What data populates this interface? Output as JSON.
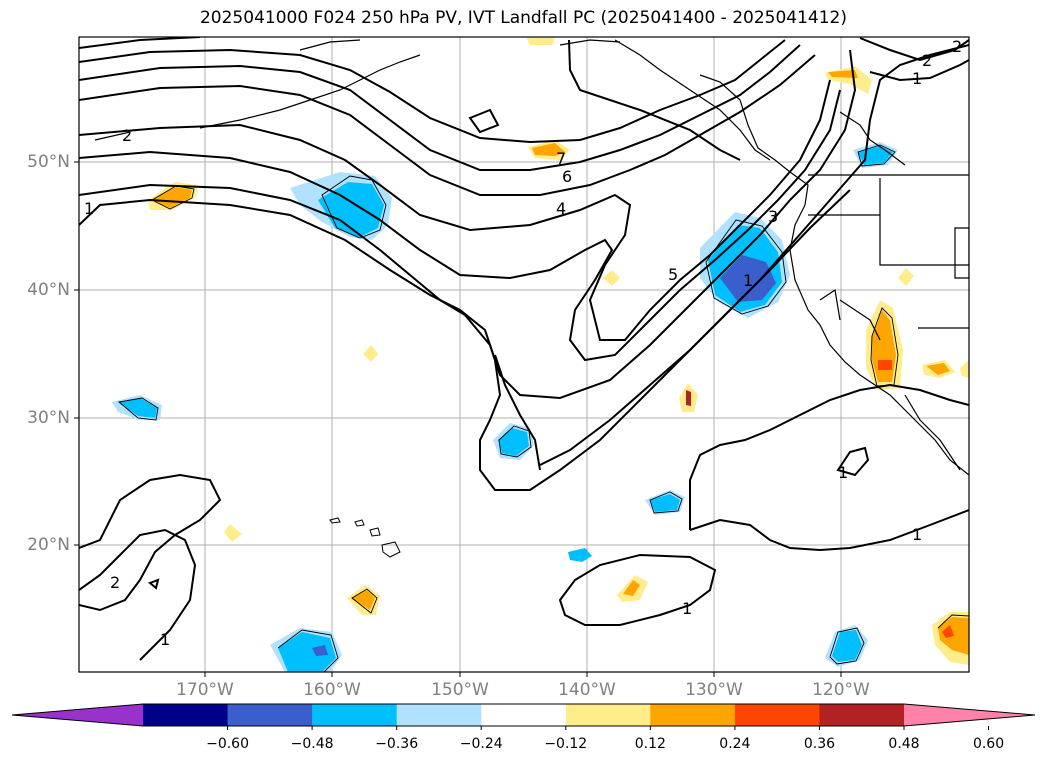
{
  "title": "2025041000 F024 250 hPa PV, IVT Landfall PC (2025041400 - 2025041412)",
  "lat_labels": [
    "50°N",
    "40°N",
    "30°N",
    "20°N"
  ],
  "lon_labels": [
    "170°W",
    "160°W",
    "150°W",
    "140°W",
    "130°W",
    "120°W"
  ],
  "contour_labels": [
    "1",
    "2",
    "6",
    "4",
    "7",
    "5",
    "3",
    "1",
    "2",
    "1",
    "1",
    "1",
    "2",
    "1",
    "2",
    "1"
  ],
  "colorbar": {
    "ticks": [
      "−0.60",
      "−0.48",
      "−0.36",
      "−0.24",
      "−0.12",
      "0.12",
      "0.24",
      "0.36",
      "0.48",
      "0.60"
    ],
    "colors": [
      "#9932cc",
      "#00008b",
      "#3a5fcd",
      "#00bfff",
      "#b0e2ff",
      "#ffffff",
      "#ffec8b",
      "#ffa500",
      "#ff4500",
      "#b22222",
      "#ff82ab"
    ]
  }
}
